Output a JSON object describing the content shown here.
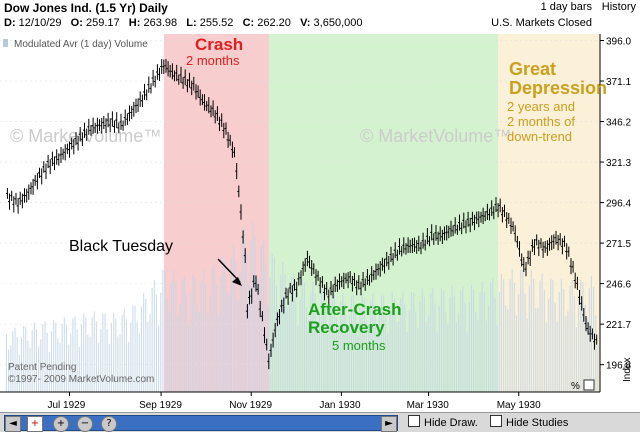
{
  "header": {
    "title": "Dow Jones Ind.  (1.5 Yr) Daily",
    "bar_type": "1 day bars",
    "history_label": "History",
    "market_status": "U.S. Markets Closed",
    "date_label": "D:",
    "date_value": "12/10/29",
    "open_label": "O:",
    "open_value": "259.17",
    "high_label": "H:",
    "high_value": "263.98",
    "low_label": "L:",
    "low_value": "255.52",
    "close_label": "C:",
    "close_value": "262.20",
    "volume_label": "V:",
    "volume_value": "3,650,000"
  },
  "chart_data": {
    "type": "line",
    "subtype": "ohlc_bars_with_volume",
    "indicator_label": "Modulated Avr (1 day) Volume",
    "y_axis_side": "right",
    "y_axis_title": "Index",
    "y_ticks": [
      396.0,
      371.1,
      346.2,
      321.3,
      296.4,
      271.5,
      246.6,
      221.7,
      196.8
    ],
    "y_min": 180,
    "y_max": 400,
    "x_min": "1929-05-15",
    "x_max": "1930-06-25",
    "x_ticks": [
      {
        "date": "1929-07-01",
        "label": "Jul 1929"
      },
      {
        "date": "1929-09-01",
        "label": "Sep 1929"
      },
      {
        "date": "1929-11-01",
        "label": "Nov 1929"
      },
      {
        "date": "1930-01-01",
        "label": "Jan 1930"
      },
      {
        "date": "1930-03-01",
        "label": "Mar 1930"
      },
      {
        "date": "1930-05-01",
        "label": "May 1930"
      }
    ],
    "regions": [
      {
        "start": "1929-09-03",
        "end": "1929-11-13",
        "color": "#f7cdcd",
        "label": "Crash",
        "sublabel": "2 months",
        "label_color": "#e02020"
      },
      {
        "start": "1929-11-13",
        "end": "1930-04-17",
        "color": "#d5f2d0",
        "label": "After-Crash\nRecovery",
        "sublabel": "5 months",
        "label_color": "#1aa01a"
      },
      {
        "start": "1930-04-17",
        "end": "1930-06-25",
        "color": "#fbf0d8",
        "label": "Great\nDepression",
        "sublabel": "2 years and\n2 months of\ndown-trend",
        "label_color": "#c9a020"
      }
    ],
    "annotation": {
      "text": "Black Tuesday",
      "date": "1929-10-29",
      "value": 230
    },
    "watermark": "© MarketVolume™",
    "patent_text": "Patent Pending",
    "copyright_text": "©1997- 2009 MarketVolume.com",
    "percent_label": "%",
    "series": [
      {
        "kind": "price",
        "points": [
          [
            "1929-05-20",
            300
          ],
          [
            "1929-05-27",
            296
          ],
          [
            "1929-06-03",
            302
          ],
          [
            "1929-06-10",
            312
          ],
          [
            "1929-06-17",
            320
          ],
          [
            "1929-06-24",
            324
          ],
          [
            "1929-07-01",
            330
          ],
          [
            "1929-07-08",
            336
          ],
          [
            "1929-07-15",
            342
          ],
          [
            "1929-07-22",
            344
          ],
          [
            "1929-07-29",
            346
          ],
          [
            "1929-08-05",
            344
          ],
          [
            "1929-08-12",
            352
          ],
          [
            "1929-08-19",
            360
          ],
          [
            "1929-08-26",
            370
          ],
          [
            "1929-09-03",
            381
          ],
          [
            "1929-09-09",
            376
          ],
          [
            "1929-09-16",
            372
          ],
          [
            "1929-09-23",
            368
          ],
          [
            "1929-09-30",
            358
          ],
          [
            "1929-10-07",
            352
          ],
          [
            "1929-10-14",
            342
          ],
          [
            "1929-10-21",
            326
          ],
          [
            "1929-10-24",
            300
          ],
          [
            "1929-10-28",
            262
          ],
          [
            "1929-10-29",
            230
          ],
          [
            "1929-11-04",
            250
          ],
          [
            "1929-11-08",
            228
          ],
          [
            "1929-11-13",
            199
          ],
          [
            "1929-11-18",
            222
          ],
          [
            "1929-11-25",
            240
          ],
          [
            "1929-12-02",
            245
          ],
          [
            "1929-12-09",
            262
          ],
          [
            "1929-12-16",
            250
          ],
          [
            "1929-12-23",
            240
          ],
          [
            "1929-12-30",
            247
          ],
          [
            "1930-01-06",
            250
          ],
          [
            "1930-01-13",
            245
          ],
          [
            "1930-01-20",
            250
          ],
          [
            "1930-01-27",
            256
          ],
          [
            "1930-02-03",
            262
          ],
          [
            "1930-02-10",
            268
          ],
          [
            "1930-02-17",
            270
          ],
          [
            "1930-02-24",
            270
          ],
          [
            "1930-03-03",
            276
          ],
          [
            "1930-03-10",
            276
          ],
          [
            "1930-03-17",
            280
          ],
          [
            "1930-03-24",
            283
          ],
          [
            "1930-03-31",
            285
          ],
          [
            "1930-04-07",
            288
          ],
          [
            "1930-04-14",
            292
          ],
          [
            "1930-04-17",
            294
          ],
          [
            "1930-04-21",
            290
          ],
          [
            "1930-04-28",
            280
          ],
          [
            "1930-05-05",
            255
          ],
          [
            "1930-05-12",
            272
          ],
          [
            "1930-05-19",
            268
          ],
          [
            "1930-05-26",
            274
          ],
          [
            "1930-06-02",
            270
          ],
          [
            "1930-06-09",
            248
          ],
          [
            "1930-06-16",
            220
          ],
          [
            "1930-06-23",
            210
          ]
        ]
      },
      {
        "kind": "volume",
        "ylim_fraction": [
          0,
          1
        ],
        "points": [
          [
            "1929-05-20",
            0.35
          ],
          [
            "1929-06-03",
            0.38
          ],
          [
            "1929-06-17",
            0.4
          ],
          [
            "1929-07-01",
            0.42
          ],
          [
            "1929-07-15",
            0.45
          ],
          [
            "1929-08-01",
            0.44
          ],
          [
            "1929-08-15",
            0.5
          ],
          [
            "1929-09-03",
            0.7
          ],
          [
            "1929-09-16",
            0.65
          ],
          [
            "1929-10-01",
            0.68
          ],
          [
            "1929-10-15",
            0.78
          ],
          [
            "1929-10-24",
            0.85
          ],
          [
            "1929-10-29",
            1.0
          ],
          [
            "1929-11-13",
            0.8
          ],
          [
            "1929-12-01",
            0.65
          ],
          [
            "1930-01-01",
            0.55
          ],
          [
            "1930-02-01",
            0.55
          ],
          [
            "1930-03-01",
            0.58
          ],
          [
            "1930-04-01",
            0.6
          ],
          [
            "1930-05-01",
            0.7
          ],
          [
            "1930-06-01",
            0.62
          ],
          [
            "1930-06-23",
            0.65
          ]
        ]
      }
    ]
  },
  "footer": {
    "hide_draw_label": "Hide Draw.",
    "hide_studies_label": "Hide Studies",
    "left_arrow": "◄",
    "right_arrow": "►",
    "zoom_in": "+",
    "zoom_out": "−",
    "help": "?"
  },
  "colors": {
    "price": "#000000",
    "volume": "#c5d6e8",
    "axis_text": "#000000",
    "grid": "#e0e0e0",
    "footer_bg": "#d9d9d9",
    "scroll_blue": "#3a6fc2"
  }
}
